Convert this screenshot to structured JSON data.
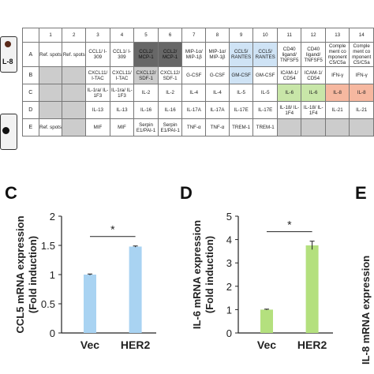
{
  "blot": {
    "label": "L-8"
  },
  "array": {
    "col_headers": [
      "",
      "1",
      "2",
      "3",
      "4",
      "5",
      "6",
      "7",
      "8",
      "9",
      "10",
      "11",
      "12",
      "13",
      "14"
    ],
    "rows": [
      {
        "label": "A",
        "cells": [
          {
            "t": "Ref. spots",
            "c": ""
          },
          {
            "t": "Ref. spots",
            "c": ""
          },
          {
            "t": "CCL1/ I-309",
            "c": ""
          },
          {
            "t": "CCL1/ I-309",
            "c": ""
          },
          {
            "t": "CCL2/ MCP-1",
            "c": "dark"
          },
          {
            "t": "CCL2/ MCP-1",
            "c": "dark"
          },
          {
            "t": "MIP-1α/ MIP-1β",
            "c": ""
          },
          {
            "t": "MIP-1α/ MIP-1β",
            "c": ""
          },
          {
            "t": "CCL5/ RANTES",
            "c": "blue"
          },
          {
            "t": "CCL5/ RANTES",
            "c": "blue"
          },
          {
            "t": "CD40 ligand/ TNFSF5",
            "c": ""
          },
          {
            "t": "CD40 ligand/ TNFSF5",
            "c": ""
          },
          {
            "t": "Comple ment co mponent C5/C5a",
            "c": ""
          },
          {
            "t": "Comple ment co mponent C5/C5a",
            "c": ""
          }
        ]
      },
      {
        "label": "B",
        "cells": [
          {
            "t": "",
            "c": "gray"
          },
          {
            "t": "",
            "c": "gray"
          },
          {
            "t": "CXCL11/ I-TAC",
            "c": ""
          },
          {
            "t": "CXCL11/ I-TAC",
            "c": ""
          },
          {
            "t": "CXCL12/ SDF-1",
            "c": "gray"
          },
          {
            "t": "CXCL12/ SDF-1",
            "c": ""
          },
          {
            "t": "G-CSF",
            "c": ""
          },
          {
            "t": "G-CSF",
            "c": ""
          },
          {
            "t": "GM-CSF",
            "c": "blue"
          },
          {
            "t": "GM-CSF",
            "c": ""
          },
          {
            "t": "ICAM-1/ CD54",
            "c": ""
          },
          {
            "t": "ICAM-1/ CD54",
            "c": ""
          },
          {
            "t": "IFN-γ",
            "c": ""
          },
          {
            "t": "IFN-γ",
            "c": ""
          }
        ]
      },
      {
        "label": "C",
        "cells": [
          {
            "t": "",
            "c": "gray"
          },
          {
            "t": "",
            "c": "gray"
          },
          {
            "t": "IL-1ra/ IL-1F3",
            "c": ""
          },
          {
            "t": "IL-1ra/ IL-1F3",
            "c": ""
          },
          {
            "t": "IL-2",
            "c": ""
          },
          {
            "t": "IL-2",
            "c": ""
          },
          {
            "t": "IL-4",
            "c": ""
          },
          {
            "t": "IL-4",
            "c": ""
          },
          {
            "t": "IL-5",
            "c": ""
          },
          {
            "t": "IL-5",
            "c": ""
          },
          {
            "t": "IL-6",
            "c": "green"
          },
          {
            "t": "IL-6",
            "c": "green"
          },
          {
            "t": "IL-8",
            "c": "salmon"
          },
          {
            "t": "IL-8",
            "c": "salmon"
          }
        ]
      },
      {
        "label": "D",
        "cells": [
          {
            "t": "",
            "c": "gray"
          },
          {
            "t": "",
            "c": "gray"
          },
          {
            "t": "IL-13",
            "c": ""
          },
          {
            "t": "IL-13",
            "c": ""
          },
          {
            "t": "IL-16",
            "c": ""
          },
          {
            "t": "IL-16",
            "c": ""
          },
          {
            "t": "IL-17A",
            "c": ""
          },
          {
            "t": "IL-17A",
            "c": ""
          },
          {
            "t": "IL-17E",
            "c": ""
          },
          {
            "t": "IL-17E",
            "c": ""
          },
          {
            "t": "IL-18/ IL-1F4",
            "c": ""
          },
          {
            "t": "IL-18/ IL-1F4",
            "c": ""
          },
          {
            "t": "IL-21",
            "c": ""
          },
          {
            "t": "IL-21",
            "c": ""
          }
        ]
      },
      {
        "label": "E",
        "cells": [
          {
            "t": "Ref. spots",
            "c": ""
          },
          {
            "t": "",
            "c": "gray"
          },
          {
            "t": "MIF",
            "c": ""
          },
          {
            "t": "MIF",
            "c": ""
          },
          {
            "t": "Serpin E1/PAI-1",
            "c": ""
          },
          {
            "t": "Serpin E1/PAI-1",
            "c": ""
          },
          {
            "t": "TNF-α",
            "c": ""
          },
          {
            "t": "TNF-α",
            "c": ""
          },
          {
            "t": "TREM-1",
            "c": ""
          },
          {
            "t": "TREM-1",
            "c": ""
          },
          {
            "t": "",
            "c": "gray"
          },
          {
            "t": "",
            "c": "gray"
          },
          {
            "t": "",
            "c": "gray"
          },
          {
            "t": "",
            "c": "gray"
          }
        ]
      }
    ]
  },
  "panel_letters": {
    "c": "C",
    "d": "D",
    "e": "E"
  },
  "right_axis_label": "IL-8 mRNA expression",
  "chart_data": [
    {
      "type": "bar",
      "panel": "C",
      "categories": [
        "Vec",
        "HER2"
      ],
      "values": [
        1.0,
        1.48
      ],
      "errors": [
        0.01,
        0.01
      ],
      "ylabel": "CCL5 mRNA expression (Fold induction)",
      "ylim": [
        0,
        2
      ],
      "yticks": [
        "0",
        "0.5",
        "1",
        "1.5",
        "2"
      ],
      "color": "#a9d3f2",
      "significance": "*"
    },
    {
      "type": "bar",
      "panel": "D",
      "categories": [
        "Vec",
        "HER2"
      ],
      "values": [
        1.0,
        3.75
      ],
      "errors": [
        0.02,
        0.18
      ],
      "ylabel": "IL-6 mRNA expression (Fold induction)",
      "ylim": [
        0,
        5
      ],
      "yticks": [
        "0",
        "1",
        "2",
        "3",
        "4",
        "5"
      ],
      "color": "#b4e07e",
      "significance": "*"
    }
  ]
}
